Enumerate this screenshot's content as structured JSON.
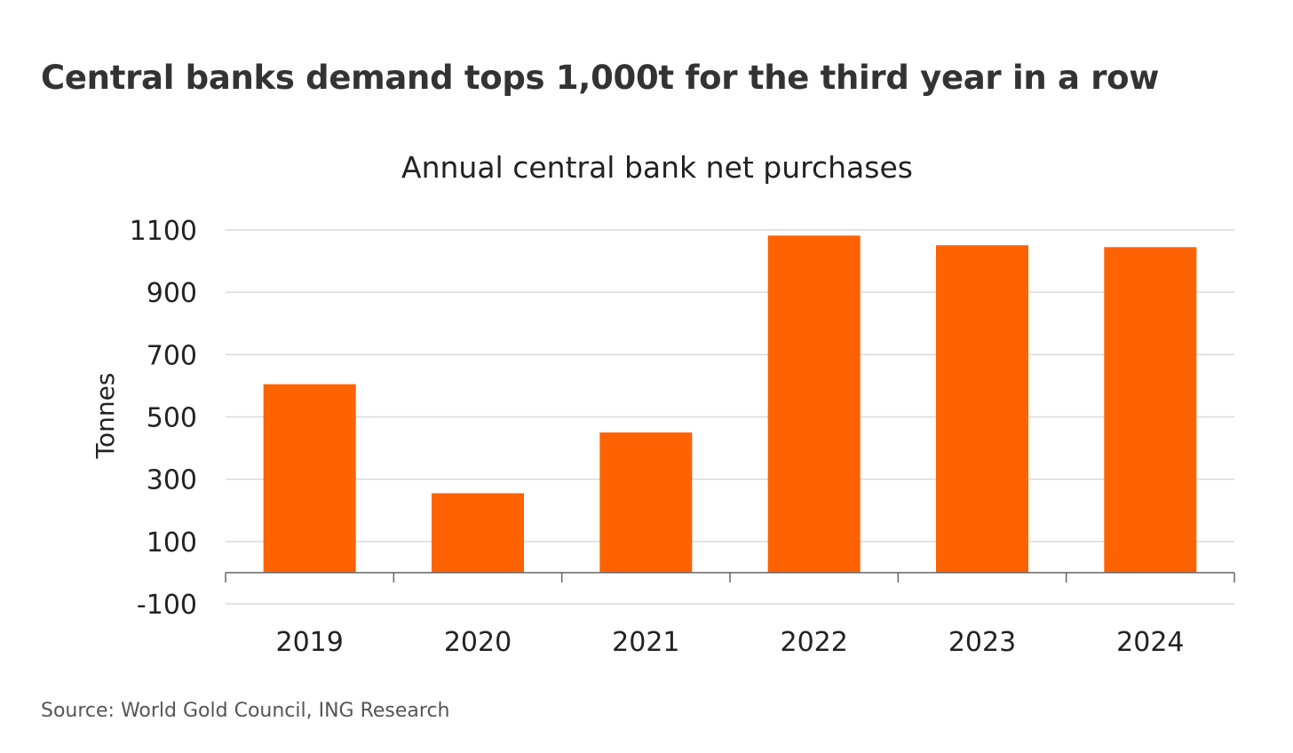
{
  "headline": "Central banks demand tops 1,000t for the third year in a row",
  "source": "Source: World Gold Council, ING Research",
  "chart_data": {
    "type": "bar",
    "title": "Annual central bank net purchases",
    "xlabel": "",
    "ylabel": "Tonnes",
    "categories": [
      "2019",
      "2020",
      "2021",
      "2022",
      "2023",
      "2024"
    ],
    "series": [
      {
        "values": [
          605,
          255,
          450,
          1082,
          1051,
          1045
        ],
        "color": "#ff6200"
      }
    ],
    "ylim": [
      -100,
      1100
    ],
    "yticks": [
      1100,
      900,
      700,
      500,
      300,
      100,
      -100
    ],
    "grid": true,
    "legend": "none"
  }
}
